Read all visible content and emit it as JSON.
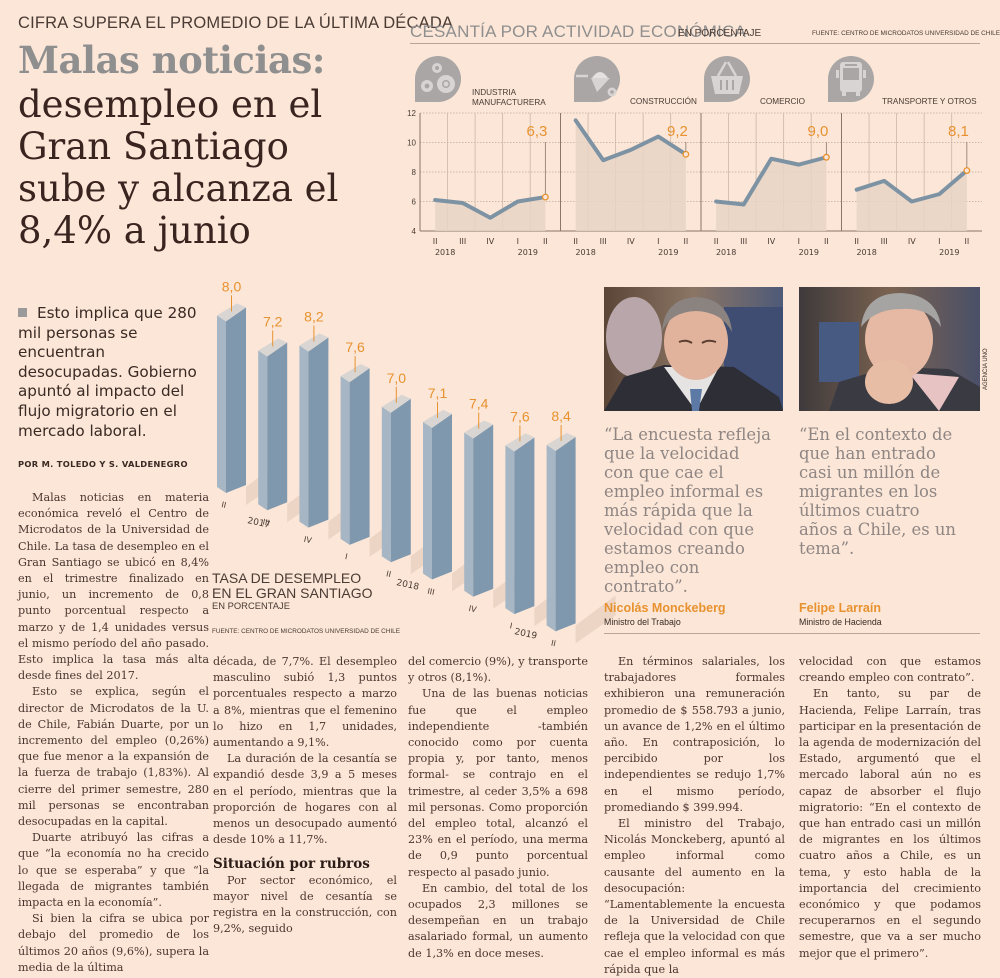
{
  "kicker": "CIFRA SUPERA EL PROMEDIO DE LA ÚLTIMA DÉCADA",
  "headline": {
    "highlight": "Malas noticias:",
    "lines": [
      "desempleo en el",
      "Gran Santiago",
      "sube y alcanza el",
      "8,4% a junio"
    ]
  },
  "lead": "Esto implica que 280 mil personas se encuentran desocupadas. Gobierno apuntó al impacto del flujo migratorio en el mercado laboral.",
  "byline": "POR M. TOLEDO Y S. VALDENEGRO",
  "sector_section": {
    "title": "CESANTÍA POR ACTIVIDAD ECONÓMICA",
    "subtitle": "EN PORCENTAJE",
    "source": "FUENTE: CENTRO DE MICRODATOS UNIVERSIDAD DE CHILE",
    "sectors": [
      {
        "label_lines": [
          "INDUSTRIA",
          "MANUFACTURERA"
        ],
        "icon": "gears-icon"
      },
      {
        "label_lines": [
          "CONSTRUCCIÓN"
        ],
        "icon": "wheelbarrow-icon"
      },
      {
        "label_lines": [
          "COMERCIO"
        ],
        "icon": "shopping-basket-icon"
      },
      {
        "label_lines": [
          "TRANSPORTE Y OTROS"
        ],
        "icon": "bus-icon"
      }
    ]
  },
  "bars_section": {
    "title_lines": [
      "TASA DE DESEMPLEO",
      "EN EL GRAN SANTIAGO"
    ],
    "subtitle": "EN PORCENTAJE",
    "source": "FUENTE: CENTRO DE MICRODATOS UNIVERSIDAD DE CHILE"
  },
  "chart_data": [
    {
      "type": "line",
      "title": "INDUSTRIA MANUFACTURERA",
      "x": [
        "II 2018",
        "III",
        "IV",
        "I 2019",
        "II"
      ],
      "x_tick_labels": [
        "II",
        "III",
        "IV",
        "I",
        "II"
      ],
      "year_labels": [
        "2018",
        "2019"
      ],
      "values": [
        6.1,
        5.9,
        4.9,
        6.0,
        6.3
      ],
      "data_label": "6,3",
      "ylim": [
        4,
        12
      ],
      "yticks": [
        4,
        6,
        8,
        10,
        12
      ],
      "grid": true
    },
    {
      "type": "line",
      "title": "CONSTRUCCIÓN",
      "x": [
        "II 2018",
        "III",
        "IV",
        "I 2019",
        "II"
      ],
      "x_tick_labels": [
        "II",
        "III",
        "IV",
        "I",
        "II"
      ],
      "year_labels": [
        "2018",
        "2019"
      ],
      "values": [
        11.5,
        8.8,
        9.5,
        10.4,
        9.2
      ],
      "data_label": "9,2",
      "ylim": [
        4,
        12
      ],
      "grid": true
    },
    {
      "type": "line",
      "title": "COMERCIO",
      "x": [
        "II 2018",
        "III",
        "IV",
        "I 2019",
        "II"
      ],
      "x_tick_labels": [
        "II",
        "III",
        "IV",
        "I",
        "II"
      ],
      "year_labels": [
        "2018",
        "2019"
      ],
      "values": [
        6.0,
        5.8,
        8.9,
        8.5,
        9.0
      ],
      "data_label": "9,0",
      "ylim": [
        4,
        12
      ],
      "grid": true
    },
    {
      "type": "line",
      "title": "TRANSPORTE Y OTROS",
      "x": [
        "II 2018",
        "III",
        "IV",
        "I 2019",
        "II"
      ],
      "x_tick_labels": [
        "II",
        "III",
        "IV",
        "I",
        "II"
      ],
      "year_labels": [
        "2018",
        "2019"
      ],
      "values": [
        6.8,
        7.4,
        6.0,
        6.5,
        8.1
      ],
      "data_label": "8,1",
      "ylim": [
        4,
        12
      ],
      "grid": true
    },
    {
      "type": "bar",
      "title": "TASA DE DESEMPLEO EN EL GRAN SANTIAGO",
      "subtitle": "EN PORCENTAJE",
      "categories": [
        "II 2017",
        "III 2017",
        "IV 2017",
        "I 2018",
        "II 2018",
        "III 2018",
        "IV 2018",
        "I 2019",
        "II 2019"
      ],
      "quarter_labels": [
        "II",
        "III",
        "IV",
        "I",
        "II",
        "III",
        "IV",
        "I",
        "II"
      ],
      "year_labels": [
        "2017",
        "2018",
        "2019"
      ],
      "values": [
        8.0,
        7.2,
        8.2,
        7.6,
        7.0,
        7.1,
        7.4,
        7.6,
        8.4
      ],
      "data_labels": [
        "8,0",
        "7,2",
        "8,2",
        "7,6",
        "7,0",
        "7,1",
        "7,4",
        "7,6",
        "8,4"
      ]
    }
  ],
  "quotes": [
    {
      "text": "“La encuesta refleja que la velocidad con que cae el empleo informal es más rápida que la velocidad con que estamos creando empleo con contrato”.",
      "lines": [
        "“La encuesta refleja",
        "que la velocidad",
        "con que cae el",
        "empleo informal es",
        "más rápida que la",
        "velocidad con que",
        "estamos creando",
        "empleo con contrato”."
      ],
      "name": "Nicolás Monckeberg",
      "role": "Ministro del Trabajo"
    },
    {
      "text": "“En el contexto de que han entrado casi un millón de migrantes en los últimos cuatro años a Chile, es un tema”.",
      "lines": [
        "“En el contexto de",
        "que han entrado",
        "casi un millón de",
        "migrantes en los",
        "últimos cuatro",
        "años a Chile, es un",
        "tema”."
      ],
      "name": "Felipe Larraín",
      "role": "Ministro de Hacienda"
    }
  ],
  "photo_credit": "AGENCIA UNO",
  "body": {
    "col1": [
      "Malas noticias en materia económica reveló el Centro de Microdatos de la Universidad de Chile. La tasa de desempleo en el Gran Santiago se ubicó en 8,4% en el trimestre finalizado en junio, un incremento de 0,8 punto porcentual respecto a marzo y de 1,4 unidades versus el mismo período del año pasado. Esto implica la tasa más alta desde fines del 2017.",
      "Esto se explica, según el director de Microdatos de la U. de Chile, Fabián Duarte, por un incremento del empleo (0,26%) que fue menor a la expansión de la fuerza de trabajo (1,83%). Al cierre del primer semestre, 280 mil personas se encontraban desocupadas en la capital.",
      "Duarte atribuyó las cifras a que “la economía no ha crecido lo que se esperaba” y que “la llegada de migrantes también impacta en la economía”.",
      "Si bien la cifra se ubica por debajo del promedio de los últimos 20 años (9,6%), supera la media de la última"
    ],
    "col2": [
      "década, de 7,7%. El desempleo masculino subió 1,3 puntos porcentuales respecto a marzo a 8%, mientras que el femenino lo hizo en 1,7 unidades, aumentando a 9,1%.",
      "La duración de la cesantía se expandió desde 3,9 a 5 meses en el período, mientras que la proporción de hogares con al menos un desocupado aumentó desde 10% a 11,7%."
    ],
    "col2_heading": "Situación por rubros",
    "col2b": [
      "Por sector económico, el mayor nivel de cesantía se registra en la construcción, con 9,2%, seguido"
    ],
    "col3": [
      "del comercio (9%), y transporte y otros (8,1%).",
      "Una de las buenas noticias fue que el empleo independiente -también conocido como por cuenta propia y, por tanto, menos formal- se contrajo en el trimestre, al ceder 3,5% a 698 mil personas. Como proporción del empleo total, alcanzó el 23% en el período, una merma de 0,9 punto porcentual respecto al pasado junio.",
      "En cambio, del total de los ocupados 2,3 millones se desempeñan en un trabajo asalariado formal, un aumento de 1,3% en doce meses."
    ],
    "col4": [
      "En términos salariales, los trabajadores formales exhibieron una remuneración promedio de $ 558.793 a junio, un avance de 1,2% en el último año. En contraposición, lo percibido por los independientes se redujo 1,7% en el mismo período, promediando $ 399.994.",
      "El ministro del Trabajo, Nicolás Monckeberg, apuntó al empleo informal como causante del aumento en la desocupación: “Lamentablemente la encuesta de la Universidad de Chile refleja que la velocidad con que cae el empleo informal es más rápida que la"
    ],
    "col5": [
      "velocidad con que estamos creando empleo con contrato”.",
      "En tanto, su par de Hacienda, Felipe Larraín, tras participar en la presentación de la agenda de modernización del Estado, argumentó que el mercado laboral aún no es capaz de absorber el flujo migratorio: “En el contexto de que han entrado casi un millón de migrantes en los últimos cuatro años a Chile, es un tema, y esto habla de la importancia del crecimiento económico y que podamos recuperarnos en el segundo semestre, que va a ser mucho mejor que el primero”."
    ]
  },
  "colors": {
    "background": "#fbe6d7",
    "accent_orange": "#e8922f",
    "line_series": "#7d93a3",
    "bar_front": "#7f98ad",
    "bar_side": "#a7b6c4",
    "bar_top": "#d9d5d3",
    "area_fill": "#e7d4c5",
    "headline_gray": "#8f8f8f"
  }
}
